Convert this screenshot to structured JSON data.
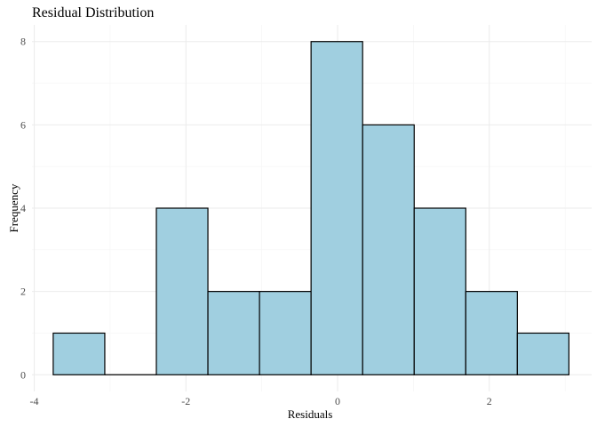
{
  "chart_data": {
    "type": "bar",
    "title": "Residual Distribution",
    "xlabel": "Residuals",
    "ylabel": "Frequency",
    "bin_width": 0.68,
    "bins": [
      {
        "x0": -3.75,
        "x1": -3.07,
        "count": 1
      },
      {
        "x0": -3.07,
        "x1": -2.39,
        "count": 0
      },
      {
        "x0": -2.39,
        "x1": -1.71,
        "count": 4
      },
      {
        "x0": -1.71,
        "x1": -1.03,
        "count": 2
      },
      {
        "x0": -1.03,
        "x1": -0.35,
        "count": 2
      },
      {
        "x0": -0.35,
        "x1": 0.33,
        "count": 8
      },
      {
        "x0": 0.33,
        "x1": 1.01,
        "count": 6
      },
      {
        "x0": 1.01,
        "x1": 1.69,
        "count": 4
      },
      {
        "x0": 1.69,
        "x1": 2.37,
        "count": 2
      },
      {
        "x0": 2.37,
        "x1": 3.05,
        "count": 1
      }
    ],
    "xlim": [
      -4.03,
      3.35
    ],
    "ylim": [
      -0.4,
      8.4
    ],
    "x_ticks": [
      -4,
      -2,
      0,
      2
    ],
    "x_tick_labels": [
      "-4",
      "-2",
      "0",
      "2"
    ],
    "x_minor_ticks": [
      -3,
      -1,
      1,
      3
    ],
    "y_ticks": [
      0,
      2,
      4,
      6,
      8
    ],
    "y_tick_labels": [
      "0",
      "2",
      "4",
      "6",
      "8"
    ],
    "y_minor_ticks": [
      1,
      3,
      5,
      7
    ],
    "grid": true,
    "legend": "none",
    "bar_color": "#a0cfe0",
    "bar_edge_color": "#000000"
  }
}
